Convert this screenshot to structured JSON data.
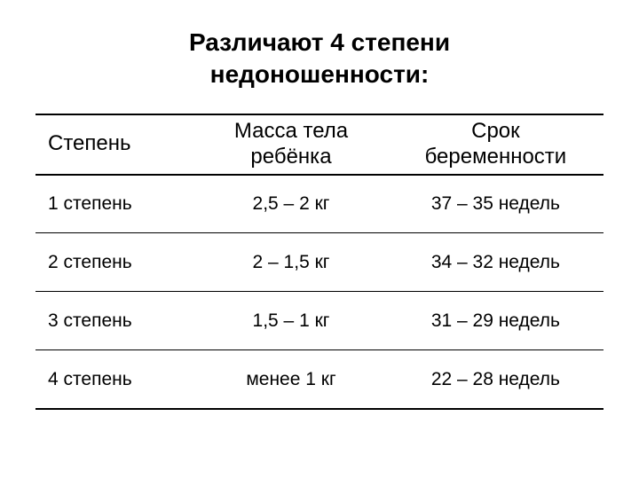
{
  "title_line1": "Различают 4 степени",
  "title_line2": "недоношенности:",
  "table": {
    "headers": {
      "degree": "Степень",
      "mass_l1": "Масса тела",
      "mass_l2": "ребёнка",
      "term_l1": "Срок",
      "term_l2": "беременности"
    },
    "rows": [
      {
        "degree": "1 степень",
        "mass": "2,5 – 2 кг",
        "term": "37 – 35 недель"
      },
      {
        "degree": "2 степень",
        "mass": "2 – 1,5 кг",
        "term": "34 – 32 недель"
      },
      {
        "degree": "3 степень",
        "mass": "1,5 – 1 кг",
        "term": "31 – 29 недель"
      },
      {
        "degree": "4 степень",
        "mass": "менее 1 кг",
        "term": "22 – 28 недель"
      }
    ]
  },
  "styling": {
    "background": "#ffffff",
    "text_color": "#000000",
    "border_color": "#000000",
    "title_fontsize": 28,
    "header_fontsize": 24,
    "cell_fontsize": 21
  }
}
